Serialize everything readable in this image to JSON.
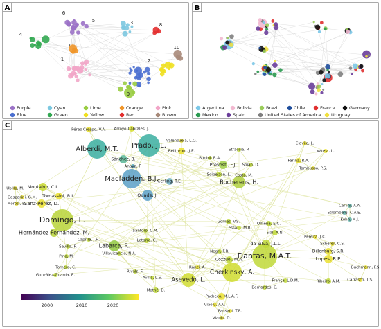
{
  "panels": [
    {
      "label": "A",
      "cluster_numbers": [
        "1",
        "2",
        "3",
        "4",
        "5",
        "6",
        "7",
        "8",
        "9",
        "10"
      ],
      "legend_rows": [
        [
          {
            "name": "Purple",
            "color": "#9b72c7"
          },
          {
            "name": "Cyan",
            "color": "#7cc8e0"
          },
          {
            "name": "Lime",
            "color": "#9acd44"
          },
          {
            "name": "Orange",
            "color": "#f0962a"
          },
          {
            "name": "Pink",
            "color": "#f2a6c8"
          }
        ],
        [
          {
            "name": "Blue",
            "color": "#4a6fd0"
          },
          {
            "name": "Green",
            "color": "#33a852"
          },
          {
            "name": "Yellow",
            "color": "#f0e020"
          },
          {
            "name": "Red",
            "color": "#e33030"
          },
          {
            "name": "Brown",
            "color": "#a88a7a"
          }
        ]
      ]
    },
    {
      "label": "B",
      "legend_rows": [
        [
          {
            "name": "Argentina",
            "color": "#7cc8e8"
          },
          {
            "name": "Bolivia",
            "color": "#f2b8d0"
          },
          {
            "name": "Brazil",
            "color": "#9acd5a"
          },
          {
            "name": "Chile",
            "color": "#1f4e9c"
          },
          {
            "name": "France",
            "color": "#e03030"
          },
          {
            "name": "Germany",
            "color": "#111111"
          }
        ],
        [
          {
            "name": "Mexico",
            "color": "#2a9a50"
          },
          {
            "name": "Spain",
            "color": "#6a3d9a"
          },
          {
            "name": "United States of America",
            "color": "#7f7f7f"
          },
          {
            "name": "Uruguay",
            "color": "#f0e040"
          }
        ]
      ]
    },
    {
      "label": "C",
      "node_labels": [
        "Pérez-Crespo, V.A.",
        "Arroyo-Cabrales, J.",
        "Alberdi, M.T.",
        "Prado, J.L.",
        "Valenzuela, L.O.",
        "Bellinzoni, J.E.",
        "Sánchez, B.",
        "Straccia, P.",
        "Bonini, R.A.",
        "Prevosti, F.J.",
        "Soian, D.",
        "Soibelzon, L.",
        "Costa, M.",
        "Clavijo, L.",
        "Varela, L.",
        "Fariña, R.A.",
        "Tambusso, P.S.",
        "Montalvo, C.I.",
        "Ubilla, M.",
        "Tomassini, R.L.",
        "Gasparini, G.M.",
        "Morosi, E.",
        "Sanz-Pérez, D.",
        "Anaya, F.",
        "Macfadden, B.J.",
        "Cerling, T.E.",
        "Quade, J.",
        "Bocherens, H.",
        "Carlini, A.A.",
        "Strömberg, C.A.E.",
        "Kohn, M.J.",
        "Domingo, L.",
        "Hernández Fernández, M.",
        "Santoro, C.M.",
        "Gomes, V.S.",
        "Lessa, C.M.B.",
        "Omena, E.C.",
        "Sial, A.N.",
        "Pereira, J.C.",
        "Caprile, J.H.",
        "Latorre, C.",
        "Labarca, R.",
        "Sevilla, P.",
        "Scherer, C.S.",
        "da Silva, J.L.L.",
        "Villavicencio, N.A.",
        "Pino, M.",
        "Negri, F.R.",
        "Dillenburg, S.R.",
        "Cozzuol, M.A.",
        "Dantas, M.A.T.",
        "Lopes, R.P.",
        "Tornero, C.",
        "Buchmann, F.S.",
        "González-Guarda, E.",
        "Rivals, F.",
        "Ranzi, A.",
        "Cherkinsky, A.",
        "Asevedo, L.",
        "Avilla, L.S.",
        "França, L.D.M.",
        "Ribeiro, A.M.",
        "Carrasco, T.S.",
        "Bernardes, C.",
        "Mothé, D.",
        "Pacheco, M.L.A.F.",
        "Viaolu, A.V.",
        "Pansani, T.R.",
        "Viaolu, D."
      ],
      "colorbar_ticks": [
        "2000",
        "2010",
        "2020"
      ]
    }
  ]
}
